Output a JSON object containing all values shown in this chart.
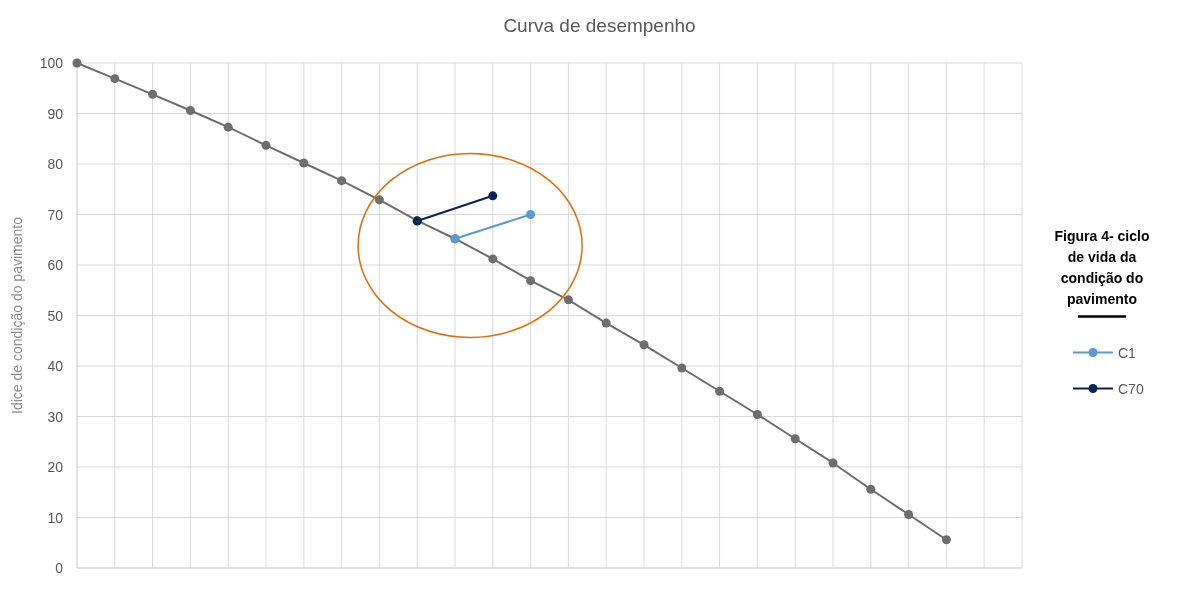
{
  "chart_data": {
    "type": "line",
    "title": "Curva de desempenho",
    "ylabel": "Idice de condição do pavimento",
    "legend_title": "Figura 4- ciclo de vida da condição do pavimento",
    "legend": "right",
    "grid": true,
    "marker": "circle",
    "categories": [
      null,
      null,
      null,
      null,
      null,
      null,
      null,
      null,
      null,
      null,
      null,
      null,
      null,
      null,
      null,
      null,
      null,
      null,
      null,
      null,
      null,
      null,
      null,
      null,
      null,
      null
    ],
    "ylim": [
      0,
      100
    ],
    "yticks": [
      0,
      10,
      20,
      30,
      40,
      50,
      60,
      70,
      80,
      90,
      100
    ],
    "series": [
      {
        "color": "#6e6e6e",
        "values": [
          100,
          96.9,
          93.8,
          90.6,
          87.3,
          83.7,
          80.2,
          76.7,
          72.9,
          68.8,
          65.2,
          61.2,
          56.9,
          53.1,
          48.5,
          44.2,
          39.6,
          35,
          30.4,
          25.6,
          20.8,
          15.6,
          10.6,
          5.6,
          null,
          null
        ]
      },
      {
        "name": "C1",
        "color": "#5b9bd5",
        "values": [
          null,
          null,
          null,
          null,
          null,
          null,
          null,
          null,
          null,
          null,
          65.2,
          null,
          70,
          null,
          null,
          null,
          null,
          null,
          null,
          null,
          null,
          null,
          null,
          null,
          null,
          null
        ]
      },
      {
        "name": "C70",
        "color": "#0d2356",
        "values": [
          null,
          null,
          null,
          null,
          null,
          null,
          null,
          null,
          null,
          68.7,
          null,
          73.7,
          null,
          null,
          null,
          null,
          null,
          null,
          null,
          null,
          null,
          null,
          null,
          null,
          null,
          null
        ]
      }
    ]
  }
}
